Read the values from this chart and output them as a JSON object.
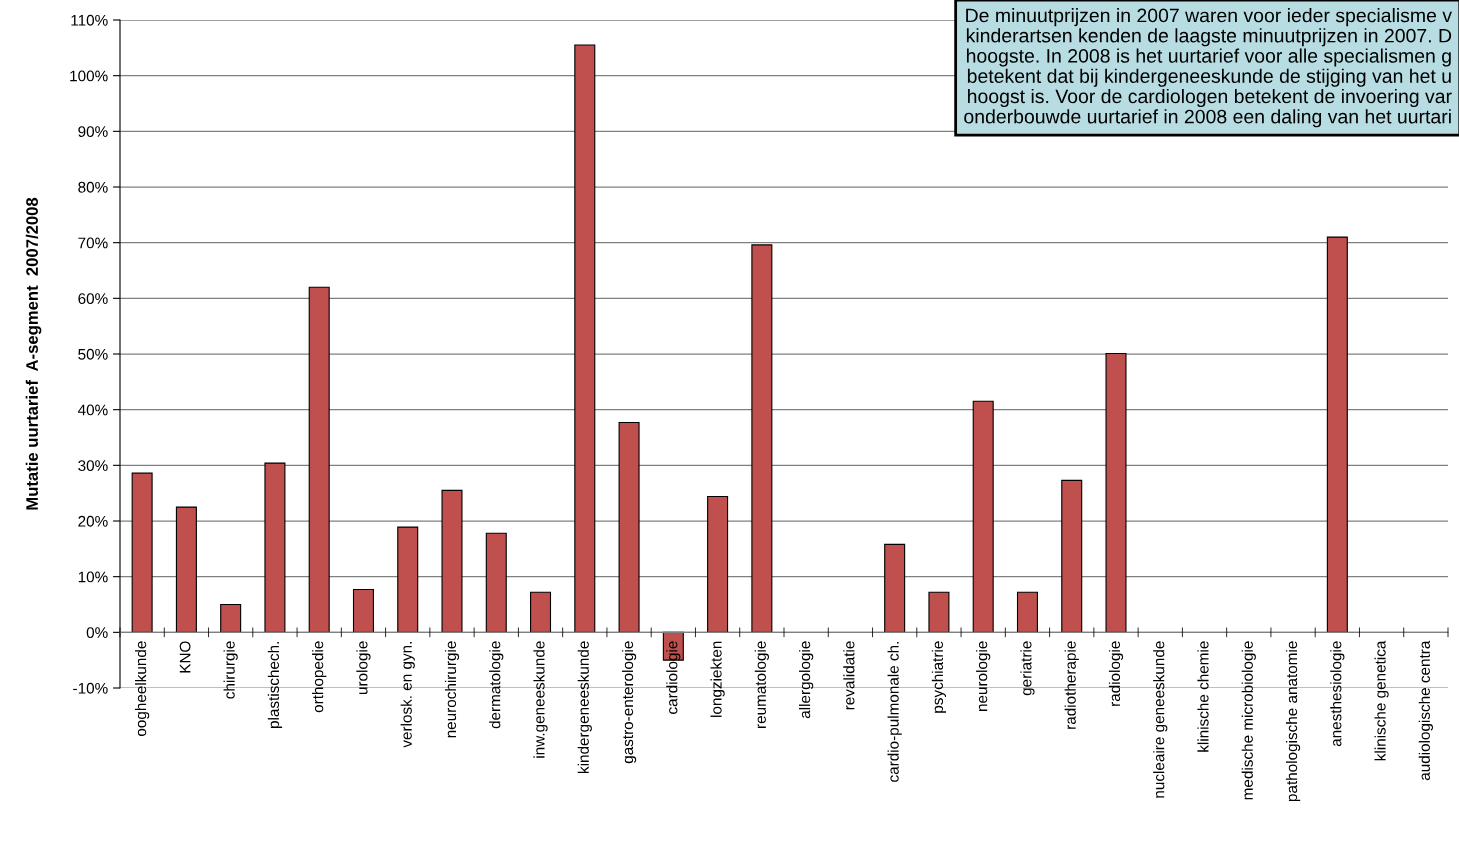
{
  "chart_data": {
    "type": "bar",
    "ylabel": "Mutatie uurtarief  A-segment  2007/2008",
    "categories": [
      "oogheelkunde",
      "KNO",
      "chirurgie",
      "plastischech.",
      "orthopedie",
      "urologie",
      "verlosk. en gyn.",
      "neurochirurgie",
      "dermatologie",
      "inw.geneeskunde",
      "kindergeneeskunde",
      "gastro-enterologie",
      "cardiologie",
      "longziekten",
      "reumatologie",
      "allergologie",
      "revalidatie",
      "cardio-pulmonale ch.",
      "psychiatrie",
      "neurologie",
      "geriatrie",
      "radiotherapie",
      "radiologie",
      "nucleaire geneeskunde",
      "klinische chemie",
      "medische microbiologie",
      "pathologische anatomie",
      "anesthesiologie",
      "klinische genetica",
      "audiologische centra"
    ],
    "values": [
      28.6,
      22.5,
      5.0,
      30.4,
      62.0,
      7.7,
      18.9,
      25.5,
      17.8,
      7.2,
      105.5,
      37.7,
      -5.0,
      24.4,
      69.6,
      null,
      null,
      15.8,
      7.2,
      41.5,
      7.2,
      27.3,
      50.1,
      null,
      null,
      null,
      null,
      71.0,
      null,
      null
    ],
    "color": "#c0504d",
    "ylim": [
      -10,
      110
    ],
    "yticks": [
      {
        "value": -10,
        "label": "-10%"
      },
      {
        "value": 0,
        "label": "0%"
      },
      {
        "value": 10,
        "label": "10%"
      },
      {
        "value": 20,
        "label": "20%"
      },
      {
        "value": 30,
        "label": "30%"
      },
      {
        "value": 40,
        "label": "40%"
      },
      {
        "value": 50,
        "label": "50%"
      },
      {
        "value": 60,
        "label": "60%"
      },
      {
        "value": 70,
        "label": "70%"
      },
      {
        "value": 80,
        "label": "80%"
      },
      {
        "value": 90,
        "label": "90%"
      },
      {
        "value": 100,
        "label": "100%"
      },
      {
        "value": 110,
        "label": "110%"
      }
    ],
    "grid": "y",
    "annotations": [
      "De minuutprijzen in 2007 waren voor ieder specialisme v\nkinderartsen kenden de laagste minuutprijzen in 2007. D\nhoogste. In 2008 is het uurtarief voor alle specialismen g\nbetekent dat bij kindergeneeskunde de stijging van het u\nhoogst is. Voor de cardiologen betekent de invoering var\nonderbouwde uurtarief in 2008 een daling van het uurtari"
    ]
  }
}
